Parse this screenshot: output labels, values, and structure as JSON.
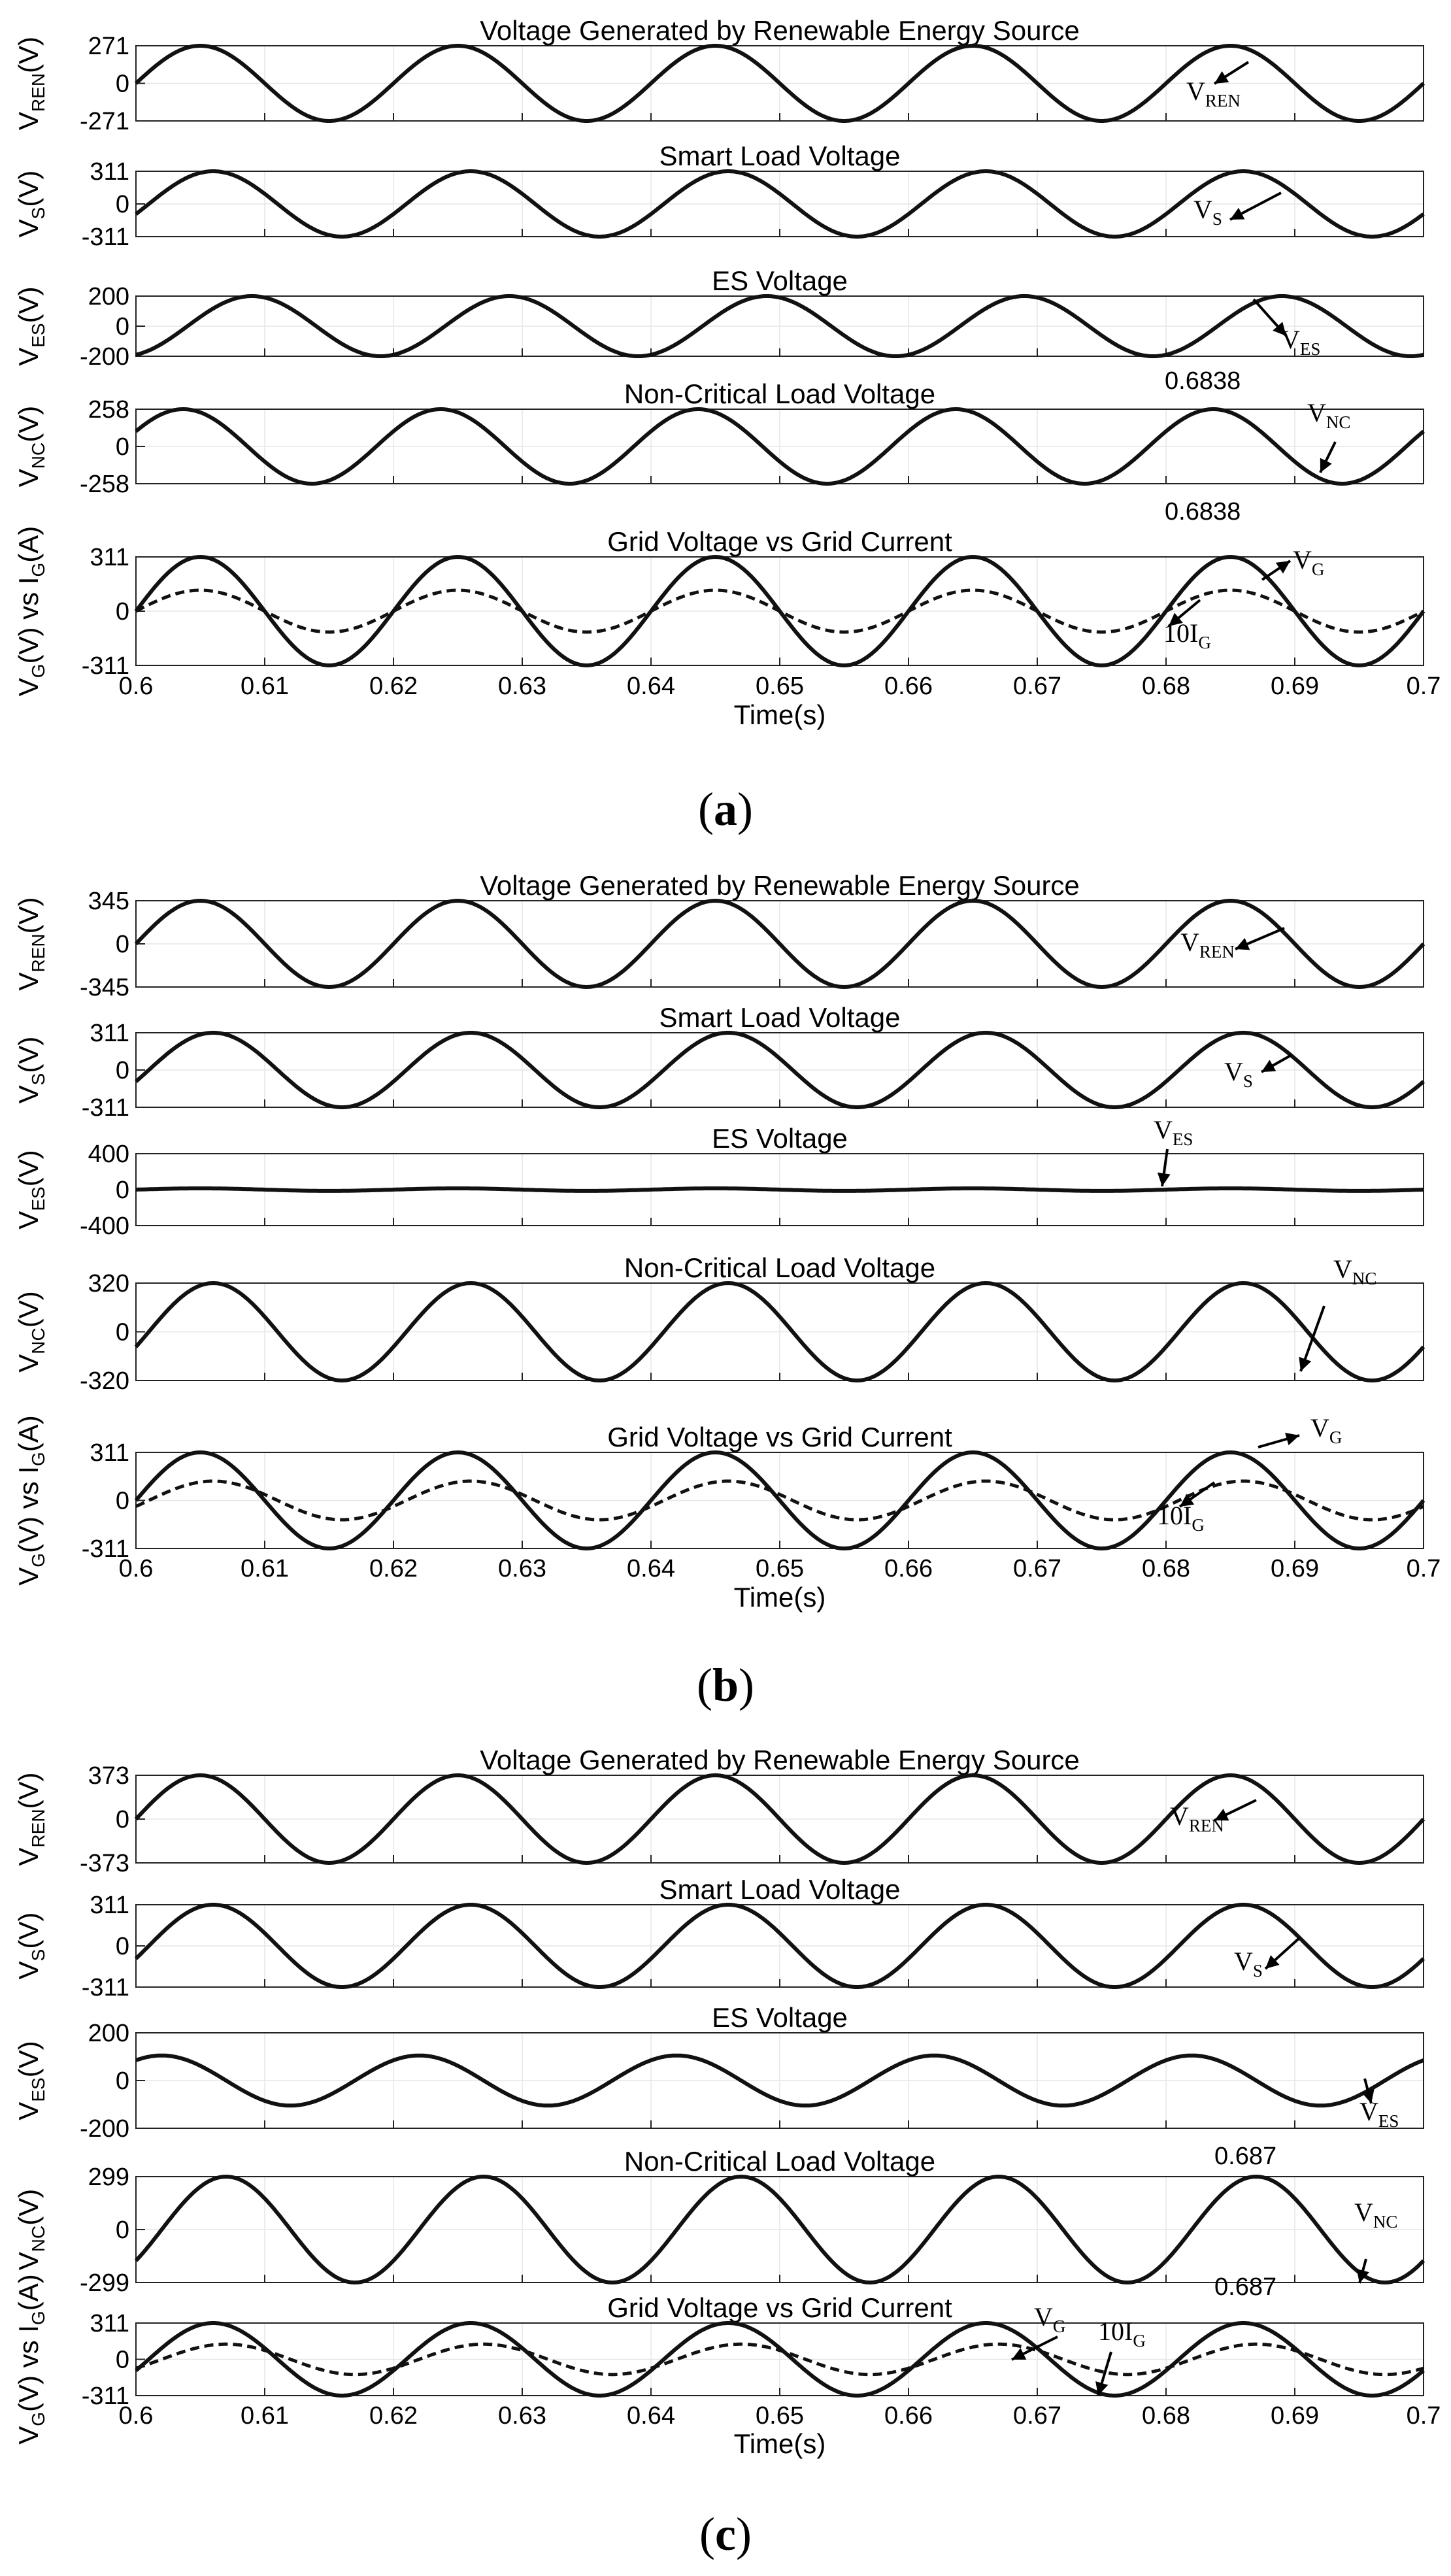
{
  "figure": {
    "captions": [
      "a",
      "b",
      "c"
    ],
    "x_axis": {
      "label": "Time(s)",
      "ticks": [
        "0.6",
        "0.61",
        "0.62",
        "0.63",
        "0.64",
        "0.65",
        "0.66",
        "0.67",
        "0.68",
        "0.69",
        "0.7"
      ]
    }
  },
  "chart_data": [
    {
      "panel": "a",
      "type": "line",
      "xlim": [
        0.6,
        0.7
      ],
      "xlabel": "Time(s)",
      "plots": [
        {
          "title": "Voltage Generated by Renewable Energy Source",
          "ylabel": "V",
          "ylabel_sub": "REN",
          "ylabel_unit": "(V)",
          "ylim": [
            -271,
            271
          ],
          "yticks": [
            "271",
            "0",
            "-271"
          ],
          "series": [
            {
              "name": "VREN",
              "amplitude": 271,
              "frequency_hz": 50,
              "phase_deg": 0,
              "style": "solid"
            }
          ],
          "annotations": [
            {
              "text": "V",
              "sub": "REN"
            }
          ]
        },
        {
          "title": "Smart Load Voltage",
          "ylabel": "V",
          "ylabel_sub": "S",
          "ylabel_unit": "(V)",
          "ylim": [
            -311,
            311
          ],
          "yticks": [
            "311",
            "0",
            "-311"
          ],
          "series": [
            {
              "name": "VS",
              "amplitude": 311,
              "frequency_hz": 50,
              "phase_deg": -18,
              "style": "solid"
            }
          ],
          "annotations": [
            {
              "text": "V",
              "sub": "S"
            }
          ]
        },
        {
          "title": "ES Voltage",
          "ylabel": "V",
          "ylabel_sub": "ES",
          "ylabel_unit": "(V)",
          "ylim": [
            -200,
            200
          ],
          "yticks": [
            "200",
            "0",
            "-200"
          ],
          "series": [
            {
              "name": "VES",
              "amplitude": 200,
              "frequency_hz": 50,
              "phase_deg": -72,
              "style": "solid"
            }
          ],
          "annotations": [
            {
              "text": "V",
              "sub": "ES"
            },
            {
              "text": "0.6838",
              "sub": ""
            }
          ]
        },
        {
          "title": "Non-Critical Load Voltage",
          "ylabel": "V",
          "ylabel_sub": "NC",
          "ylabel_unit": "(V)",
          "ylim": [
            -258,
            258
          ],
          "yticks": [
            "258",
            "0",
            "-258"
          ],
          "series": [
            {
              "name": "VNC",
              "amplitude": 258,
              "frequency_hz": 50,
              "phase_deg": 24,
              "style": "solid"
            }
          ],
          "annotations": [
            {
              "text": "V",
              "sub": "NC"
            },
            {
              "text": "0.6838",
              "sub": ""
            }
          ]
        },
        {
          "title": "Grid Voltage vs Grid Current",
          "ylabel": "V",
          "ylabel_sub": "G",
          "ylabel_unit": "(V) vs I",
          "ylabel_sub2": "G",
          "ylabel_unit2": "(A)",
          "ylim": [
            -311,
            311
          ],
          "yticks": [
            "311",
            "0",
            "-311"
          ],
          "series": [
            {
              "name": "VG",
              "amplitude": 311,
              "frequency_hz": 50,
              "phase_deg": 0,
              "style": "solid"
            },
            {
              "name": "10IG",
              "amplitude": 120,
              "frequency_hz": 50,
              "phase_deg": 0,
              "style": "dashed"
            }
          ],
          "annotations": [
            {
              "text": "V",
              "sub": "G"
            },
            {
              "text": "10I",
              "sub": "G"
            }
          ]
        }
      ]
    },
    {
      "panel": "b",
      "type": "line",
      "xlim": [
        0.6,
        0.7
      ],
      "xlabel": "Time(s)",
      "plots": [
        {
          "title": "Voltage Generated by Renewable Energy Source",
          "ylabel": "V",
          "ylabel_sub": "REN",
          "ylabel_unit": "(V)",
          "ylim": [
            -345,
            345
          ],
          "yticks": [
            "345",
            "0",
            "-345"
          ],
          "series": [
            {
              "name": "VREN",
              "amplitude": 345,
              "frequency_hz": 50,
              "phase_deg": 0,
              "style": "solid"
            }
          ],
          "annotations": [
            {
              "text": "V",
              "sub": "REN"
            }
          ]
        },
        {
          "title": "Smart Load Voltage",
          "ylabel": "V",
          "ylabel_sub": "S",
          "ylabel_unit": "(V)",
          "ylim": [
            -311,
            311
          ],
          "yticks": [
            "311",
            "0",
            "-311"
          ],
          "series": [
            {
              "name": "VS",
              "amplitude": 311,
              "frequency_hz": 50,
              "phase_deg": -18,
              "style": "solid"
            }
          ],
          "annotations": [
            {
              "text": "V",
              "sub": "S"
            }
          ]
        },
        {
          "title": "ES Voltage",
          "ylabel": "V",
          "ylabel_sub": "ES",
          "ylabel_unit": "(V)",
          "ylim": [
            -400,
            400
          ],
          "yticks": [
            "400",
            "0",
            "-400"
          ],
          "series": [
            {
              "name": "VES",
              "amplitude": 14,
              "frequency_hz": 50,
              "phase_deg": 0,
              "style": "solid"
            }
          ],
          "annotations": [
            {
              "text": "V",
              "sub": "ES"
            }
          ]
        },
        {
          "title": "Non-Critical Load Voltage",
          "ylabel": "V",
          "ylabel_sub": "NC",
          "ylabel_unit": "(V)",
          "ylim": [
            -320,
            320
          ],
          "yticks": [
            "320",
            "0",
            "-320"
          ],
          "series": [
            {
              "name": "VNC",
              "amplitude": 320,
              "frequency_hz": 50,
              "phase_deg": -18,
              "style": "solid"
            }
          ],
          "annotations": [
            {
              "text": "V",
              "sub": "NC"
            }
          ]
        },
        {
          "title": "Grid Voltage vs Grid Current",
          "ylabel": "V",
          "ylabel_sub": "G",
          "ylabel_unit": "(V) vs I",
          "ylabel_sub2": "G",
          "ylabel_unit2": "(A)",
          "ylim": [
            -311,
            311
          ],
          "yticks": [
            "311",
            "0",
            "-311"
          ],
          "series": [
            {
              "name": "VG",
              "amplitude": 311,
              "frequency_hz": 50,
              "phase_deg": 0,
              "style": "solid"
            },
            {
              "name": "10IG",
              "amplitude": 125,
              "frequency_hz": 50,
              "phase_deg": -18,
              "style": "dashed"
            }
          ],
          "annotations": [
            {
              "text": "V",
              "sub": "G"
            },
            {
              "text": "10I",
              "sub": "G"
            }
          ]
        }
      ]
    },
    {
      "panel": "c",
      "type": "line",
      "xlim": [
        0.6,
        0.7
      ],
      "xlabel": "Time(s)",
      "plots": [
        {
          "title": "Voltage Generated by Renewable Energy Source",
          "ylabel": "V",
          "ylabel_sub": "REN",
          "ylabel_unit": "(V)",
          "ylim": [
            -373,
            373
          ],
          "yticks": [
            "373",
            "0",
            "-373"
          ],
          "series": [
            {
              "name": "VREN",
              "amplitude": 373,
              "frequency_hz": 50,
              "phase_deg": 0,
              "style": "solid"
            }
          ],
          "annotations": [
            {
              "text": "V",
              "sub": "REN"
            }
          ]
        },
        {
          "title": "Smart Load Voltage",
          "ylabel": "V",
          "ylabel_sub": "S",
          "ylabel_unit": "(V)",
          "ylim": [
            -311,
            311
          ],
          "yticks": [
            "311",
            "0",
            "-311"
          ],
          "series": [
            {
              "name": "VS",
              "amplitude": 311,
              "frequency_hz": 50,
              "phase_deg": -18,
              "style": "solid"
            }
          ],
          "annotations": [
            {
              "text": "V",
              "sub": "S"
            }
          ]
        },
        {
          "title": "ES Voltage",
          "ylabel": "V",
          "ylabel_sub": "ES",
          "ylabel_unit": "(V)",
          "ylim": [
            -200,
            200
          ],
          "yticks": [
            "200",
            "0",
            "-200"
          ],
          "series": [
            {
              "name": "VES",
              "amplitude": 105,
              "frequency_hz": 50,
              "phase_deg": 54,
              "style": "solid"
            }
          ],
          "annotations": [
            {
              "text": "V",
              "sub": "ES"
            },
            {
              "text": "0.687",
              "sub": ""
            }
          ]
        },
        {
          "title": "Non-Critical Load Voltage",
          "ylabel": "V",
          "ylabel_sub": "NC",
          "ylabel_unit": "(V)",
          "ylim": [
            -299,
            299
          ],
          "yticks": [
            "299",
            "0",
            "-299"
          ],
          "series": [
            {
              "name": "VNC",
              "amplitude": 299,
              "frequency_hz": 50,
              "phase_deg": -36,
              "style": "solid"
            }
          ],
          "annotations": [
            {
              "text": "V",
              "sub": "NC"
            },
            {
              "text": "0.687",
              "sub": ""
            }
          ]
        },
        {
          "title": "Grid Voltage vs Grid Current",
          "ylabel": "V",
          "ylabel_sub": "G",
          "ylabel_unit": "(V) vs I",
          "ylabel_sub2": "G",
          "ylabel_unit2": "(A)",
          "ylim": [
            -311,
            311
          ],
          "yticks": [
            "311",
            "0",
            "-311"
          ],
          "series": [
            {
              "name": "VG",
              "amplitude": 311,
              "frequency_hz": 50,
              "phase_deg": -18,
              "style": "solid"
            },
            {
              "name": "10IG",
              "amplitude": 130,
              "frequency_hz": 50,
              "phase_deg": -36,
              "style": "dashed"
            }
          ],
          "annotations": [
            {
              "text": "V",
              "sub": "G"
            },
            {
              "text": "10I",
              "sub": "G"
            }
          ]
        }
      ]
    }
  ]
}
